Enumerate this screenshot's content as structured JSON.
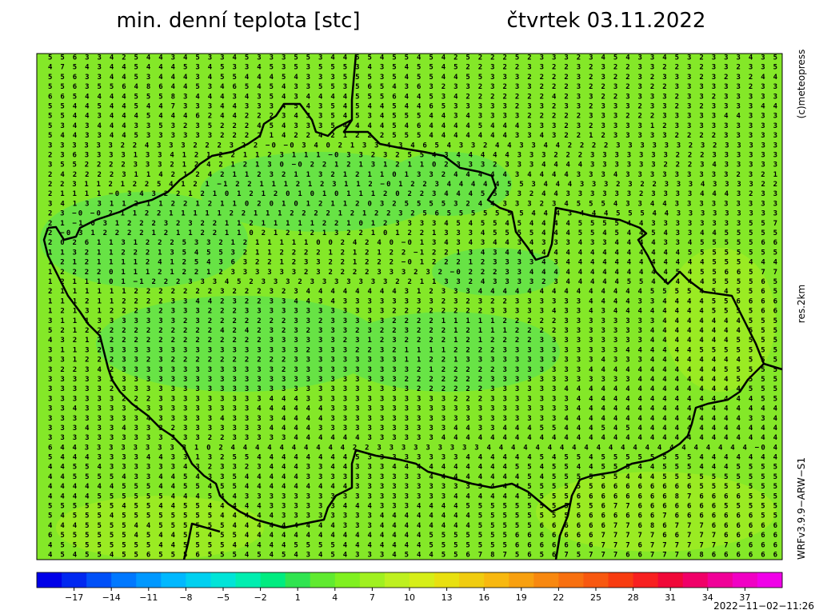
{
  "header": {
    "title": "min. denní teplota [stc]",
    "date": "čtvrtek 03.11.2022"
  },
  "side_labels": {
    "copyright": "(c)meteopress",
    "resolution": "res.2km",
    "model": "WRFv3.9.9−ARW−S1"
  },
  "map": {
    "rows": [
      "5 5 6 3 3 4 2 5 4 4 3 4 5 3 3 4 5 3 3 3 5 5 3 4 4 5 5 4 5 5 4 5 4 2 5 2 2 2 5 2 3 3 3 2 3 4 5 4 3 3 4 5 3 2 3 3 3 4 3 5",
      "4 7 5 4 3 4 4 5 4 4 4 5 3 4 5 3 3 4 5 3 5 3 5 5 5 3 4 3 5 4 5 5 4 5 2 2 3 2 2 3 3 2 2 3 2 3 2 2 3 3 2 2 3 2 3 3 2 3 3 5",
      "5 5 6 3 3 4 4 5 3 4 4 4 3 4 5 5 4 4 4 5 4 3 3 3 5 5 5 3 5 4 5 5 4 4 5 5 3 3 3 2 2 2 2 3 2 3 2 2 3 2 3 3 3 2 3 2 3 2 4 4",
      "5 5 6 3 5 5 6 4 8 6 4 4 5 3 4 6 5 4 5 4 3 3 5 5 3 5 6 5 4 3 6 3 2 3 3 2 3 2 3 3 2 2 2 3 2 2 3 2 3 2 2 3 3 3 3 3 3 2 3 3",
      "6 6 5 4 4 4 4 5 5 5 8 3 4 4 4 3 4 3 5 4 3 4 4 4 4 5 5 5 6 4 4 5 3 4 2 2 2 2 2 2 2 4 2 3 3 2 2 3 3 3 3 2 3 3 2 3 3 3 3 3",
      "5 5 4 4 5 4 4 5 4 4 7 3 3 3 4 4 3 3 3 4 5 4 3 5 4 5 4 4 5 4 4 6 5 3 3 3 3 3 2 3 3 2 3 3 2 3 3 3 2 3 3 2 3 2 3 3 3 3 4 4",
      "5 5 4 4 3 4 4 4 5 4 4 4 6 2 4 4 2 2 2 3 4 3 3 5 4 5 3 4 5 5 5 4 4 3 4 3 3 3 3 2 2 2 2 2 3 3 3 2 2 2 3 3 3 3 3 4 4 3 3 3",
      "5 3 4 3 4 4 4 3 3 5 3 2 3 5 2 2 2 4 5 4 3 3 3 5 4 4 4 4 5 4 6 4 4 4 4 5 4 4 4 3 3 3 2 3 2 3 3 3 3 1 2 3 3 3 3 3 3 3 3 3",
      "5 4 4 3 3 4 4 5 3 3 3 3 3 3 2 2 2 2 1 4 2 2 4 2 1 2 2 2 5 5 5 4 4 4 4 4 4 4 3 3 4 3 2 2 1 2 3 3 3 3 3 2 2 2 2 3 3 3 3 3",
      "3 3 3 3 3 3 2 2 4 3 3 3 2 2 2 3 2 2 −0 −0 3 4 0 2 1 3 3 4 3 4 6 5 4 3 3 2 4 4 3 3 4 4 2 2 2 2 3 3 3 3 3 3 2 3 2 3 3 3 3 3",
      "2 3 6 3 3 3 3 1 3 3 4 1 2 1 2 2 1 1 2 3 1 1 1 −0 3 3 2 3 2 5 5 4 3 4 4 4 4 4 3 3 3 2 2 2 3 3 3 3 3 3 3 2 2 2 3 3 3 3 3 3",
      "3 5 5 2 2 2 2 3 3 3 2 1 2 4 2 1 2 1 3 0 −0 2 2 1 2 1 3 1 2 1 1 0 2 3 3 3 2 3 3 3 4 4 4 4 3 3 3 3 3 3 2 2 2 3 4 3 3 3 3 3",
      "2 4 2 2 2 2 3 1 1 4 2 1 2 4 2 1 1 2 3 2 1 1 3 2 1 2 1 1 0 1 3 3 2 4 4 4 4 4 3 4 4 4 4 3 3 3 4 3 3 3 3 3 3 3 3 3 2 3 2 1",
      "2 2 3 1 1 2 1 2 2 5 4 1 2 1 −1 2 2 1 1 1 2 1 2 3 1 1 2 −0 1 2 2 3 4 4 4 4 4 5 5 3 4 4 4 3 3 3 2 3 2 2 3 3 3 4 3 3 3 3 2 2",
      "2 1 1 1 1 −0 3 4 3 2 2 1 2 1 0 1 2 1 2 0 1 0 1 0 1 1 1 2 0 2 2 3 4 4 4 5 5 3 3 2 4 4 3 3 3 3 3 3 2 3 3 3 3 4 4 4 3 2 3 3",
      "3 4 1 3 3 1 1 2 1 1 2 2 1 2 1 1 0 2 0 1 0 1 2 1 1 2 0 3 2 5 5 5 5 3 2 4 4 3 3 3 2 3 4 5 5 5 4 3 3 4 4 3 3 3 3 3 3 3 3 3",
      "2 3 −0 −0 2 1 1 2 2 1 1 1 1 1 2 2 1 1 1 2 2 2 2 1 2 1 2 2 3 2 5 6 5 5 5 5 5 5 5 4 4 4 3 4 4 4 5 5 5 4 4 3 3 3 3 3 3 3 3 3",
      "2 1 −1 0 3 1 2 2 2 3 2 3 2 2 1 1 2 1 1 1 1 1 2 2 1 0 1 2 3 3 3 3 4 5 4 5 5 4 5 4 4 4 4 5 5 5 5 4 4 3 3 3 3 3 3 3 3 5 5 7",
      "2 −0 3 1 2 2 2 2 1 2 1 1 2 2 1 1 0 2 1 2 1 2 1 3 2 2 1 0 1 2 2 1 3 3 3 4 5 5 5 5 4 4 4 5 5 4 5 4 4 5 4 3 3 4 4 5 5 5 5 5",
      "2 0 2 6 1 1 3 1 2 2 2 5 3 3 2 1 2 1 1 1 1 1 0 0 2 4 2 4 0 −0 1 3 4 3 4 3 4 4 3 4 3 3 3 4 3 3 4 4 4 4 3 3 4 5 5 5 5 5 6 6",
      "1 1 3 2 1 1 2 2 2 1 3 5 4 5 5 3 2 1 1 2 2 2 2 1 2 1 2 1 2 2 −1 2 2 1 3 4 3 4 4 4 4 4 4 4 4 4 4 4 4 4 4 4 5 5 5 5 5 5 5 5",
      "1 2 1 2 1 1 1 1 2 4 1 2 5 4 3 6 3 2 2 1 2 3 3 2 2 1 2 2 2 −0 1 2 2 2 1 2 3 3 3 3 4 3 4 4 4 4 4 4 4 4 4 4 4 4 5 5 5 4 4 4",
      "1 2 2 2 2 0 1 1 1 2 1 2 2 1 2 3 3 3 3 3 3 2 3 2 2 2 2 3 3 3 2 3 2 −0 2 2 2 3 3 4 4 4 4 4 4 4 4 4 4 4 4 5 4 5 5 6 6 5 7 7",
      "1 2 1 1 1 0 1 −1 2 2 2 3 3 3 4 5 2 3 3 3 2 3 3 3 3 3 3 3 2 2 1 1 3 3 2 4 3 3 3 3 2 3 4 4 4 4 4 5 5 4 4 4 4 4 5 5 5 5 6 5",
      "2 1 1 1 1 1 1 2 2 2 2 2 2 2 3 2 2 2 3 2 3 4 4 4 4 4 4 4 4 3 1 2 3 3 3 4 4 4 4 4 4 4 4 4 4 4 4 4 4 5 5 5 5 4 5 4 5 5 6 5",
      "1 1 1 2 1 1 2 2 2 2 3 3 4 4 2 3 2 2 3 3 4 4 3 4 3 3 3 3 3 3 3 3 2 3 2 3 2 2 3 3 3 3 3 3 4 4 4 4 3 3 4 4 4 4 5 5 6 6 6 6",
      "1 2 1 3 1 2 2 2 3 2 3 3 3 2 2 2 3 3 3 3 3 3 3 3 3 3 3 3 2 2 2 2 2 2 2 2 3 3 3 3 3 4 3 3 4 3 4 4 4 4 4 4 4 4 5 5 5 5 6 6",
      "3 1 1 1 3 3 3 3 3 3 3 2 3 2 2 2 2 2 2 2 3 3 2 3 3 3 3 3 2 2 2 2 1 1 1 1 1 2 2 2 2 2 3 3 3 3 3 3 3 3 4 4 4 4 4 4 4 5 5 5",
      "5 2 1 2 2 2 2 2 2 2 2 2 2 2 4 2 4 2 3 2 3 2 3 3 3 2 3 2 2 3 2 2 2 1 2 1 1 1 2 2 2 2 3 3 3 3 3 3 3 4 4 4 4 4 4 4 4 5 5 5",
      "4 3 2 1 2 2 2 2 2 2 2 2 2 2 2 2 2 2 3 3 3 3 3 3 2 3 1 2 3 2 2 2 2 1 2 1 2 2 2 2 3 3 3 3 3 3 3 3 3 4 4 4 4 4 4 4 5 5 5 5",
      "3 1 1 3 2 3 3 3 3 3 3 3 3 3 3 3 3 3 3 3 3 2 3 3 3 2 2 3 2 1 1 1 1 2 2 2 2 3 3 3 3 3 3 3 3 3 3 4 4 4 4 4 4 5 5 5 5 5 5 5",
      "3 3 1 2 2 2 3 3 2 3 2 2 2 2 2 2 2 2 2 2 3 3 3 3 3 3 3 3 3 1 1 2 2 1 3 3 3 3 3 3 3 3 3 3 3 4 3 3 3 4 4 4 4 4 4 4 4 5 5 5",
      "3 2 2 3 4 2 3 3 3 3 3 3 3 3 3 3 3 3 3 2 3 3 3 3 3 3 3 3 3 3 2 1 2 2 2 2 2 3 3 3 3 3 3 3 4 4 4 4 4 4 4 4 4 4 4 5 5 5 5 5",
      "3 3 3 3 3 3 3 3 3 3 3 3 3 3 3 3 3 3 3 3 3 3 3 3 3 3 3 3 3 2 2 2 2 2 2 2 3 3 3 3 3 3 3 3 3 3 3 3 4 4 4 4 4 4 4 4 5 5 5 5",
      "3 3 3 3 3 2 3 3 3 3 3 3 3 3 3 3 3 3 3 3 3 3 3 3 3 3 3 3 3 3 2 2 2 2 2 2 3 3 3 3 3 3 4 4 4 4 4 4 4 4 4 4 4 4 4 4 4 5 5 5",
      "3 3 3 3 3 3 2 2 2 3 3 3 3 3 3 3 3 3 4 4 4 3 3 3 3 3 3 3 3 3 3 3 3 2 2 2 3 3 3 3 3 3 3 4 4 4 4 4 4 4 4 4 4 4 4 4 4 4 5 5",
      "3 3 4 3 3 3 3 3 3 3 3 3 3 3 3 3 3 4 4 4 4 4 4 3 3 3 3 3 3 3 3 3 3 3 3 3 3 3 3 3 3 3 3 4 4 4 4 4 4 4 4 4 4 4 4 4 4 4 4 4",
      "3 3 3 3 3 3 3 3 4 3 3 3 3 3 4 3 3 3 3 4 4 4 4 3 3 3 3 3 3 3 3 3 3 3 3 3 3 3 3 3 3 3 4 4 4 4 4 4 4 4 4 4 4 4 4 4 4 3 3 4",
      "3 3 3 4 3 3 4 3 3 3 2 3 3 3 3 3 3 3 4 4 4 4 3 3 3 3 3 3 3 3 3 3 3 4 4 3 3 4 4 4 5 5 4 4 4 5 4 5 4 4 4 4 4 4 4 4 4 4 4 4",
      "3 3 3 3 3 3 3 3 3 3 3 3 3 2 2 3 3 3 3 3 4 4 4 4 4 4 3 3 3 3 3 3 4 4 4 4 4 4 4 4 4 4 4 4 4 4 4 4 4 4 4 4 4 4 4 4 4 4 4 4",
      "6 4 4 3 3 3 3 3 3 3 3 3 1 0 2 4 4 4 4 4 4 4 4 4 4 2 2 3 3 3 3 3 3 3 3 3 4 4 4 4 4 4 4 4 4 4 4 4 4 4 4 4 4 4 4 4 4 4 −0 4",
      "5 4 4 4 3 3 3 3 4 4 3 3 1 3 2 5 5 4 4 4 4 4 4 4 4 5 3 3 3 3 3 3 3 3 4 4 4 4 4 4 5 4 5 5 4 5 5 5 5 5 5 5 5 4 4 4 4 4 4 4",
      "4 4 5 5 4 3 3 3 3 3 3 4 3 2 3 3 2 3 4 4 4 3 3 4 4 3 3 3 4 4 4 4 4 4 4 4 4 4 5 5 4 5 5 4 4 5 5 5 4 4 5 5 5 4 4 4 5 5 5 5",
      "4 4 5 5 5 5 4 3 3 4 4 5 4 3 3 5 4 4 4 4 4 3 3 3 3 3 3 3 3 3 3 4 4 4 4 4 4 4 4 5 4 5 5 5 5 5 5 4 4 4 5 5 5 5 5 5 5 5 5 5",
      "4 4 4 4 4 4 5 5 5 4 4 5 5 4 5 5 4 4 4 4 4 4 4 4 4 3 3 3 3 3 3 3 3 3 3 3 4 4 4 5 5 5 5 5 5 6 6 6 6 6 6 6 6 5 5 5 5 5 5 5",
      "4 4 4 4 5 5 5 5 5 5 4 4 4 5 4 4 3 3 3 3 3 3 3 3 3 3 3 3 3 3 3 3 3 4 4 4 4 4 4 5 5 5 5 6 6 6 6 6 6 6 6 8 7 6 6 6 6 5 5 5",
      "5 5 5 5 5 5 4 5 5 4 4 5 5 4 4 4 4 4 3 3 3 3 3 3 4 4 4 3 3 3 4 4 4 4 5 5 5 5 5 5 5 5 5 5 5 6 7 7 6 6 6 6 6 6 6 5 5 5 5 5",
      "5 4 5 5 5 4 5 5 5 5 5 5 5 5 4 4 4 4 4 3 3 3 3 3 3 3 3 4 4 4 4 4 4 4 4 5 5 5 5 5 5 5 5 6 6 6 6 6 6 6 7 6 6 6 6 6 6 6 5 5",
      "4 4 4 5 5 5 5 4 4 5 5 5 5 5 5 4 4 4 4 4 4 4 4 4 3 3 3 4 4 4 4 4 4 4 4 5 5 5 5 5 6 6 6 6 6 6 7 7 6 8 6 7 7 7 6 6 6 6 6 6",
      "6 5 5 5 5 5 5 4 5 4 4 5 5 4 5 5 4 4 4 4 4 4 4 4 4 4 4 4 4 4 4 5 5 5 5 5 5 5 6 6 6 6 6 6 6 7 7 7 7 7 6 6 7 7 7 6 6 6 6 6",
      "4 5 5 5 5 5 5 5 5 4 4 5 5 5 5 4 4 4 4 4 5 5 5 5 4 4 4 4 4 4 4 5 5 5 5 5 5 5 6 6 6 6 6 6 6 7 7 7 6 7 7 7 7 7 7 7 6 6 6 6",
      "4 5 4 5 5 4 5 5 6 5 5 5 6 5 5 5 4 5 4 5 4 3 4 5 4 3 3 3 4 5 4 4 5 5 6 7 8 7 5 6 5 6 7 5 7 7 7 6 6 7 7 7 6 8 6 6 6 6 6 6"
    ]
  },
  "colorbar": {
    "range": [
      -20,
      40
    ],
    "colors": [
      "#0000e8",
      "#0028f0",
      "#0050f8",
      "#0078ff",
      "#0098ff",
      "#00b8ff",
      "#00d0f0",
      "#00e4d8",
      "#00eeb0",
      "#00ec80",
      "#30e450",
      "#60ea30",
      "#80f020",
      "#a0f020",
      "#bef020",
      "#d6ee18",
      "#e8e010",
      "#f0cc10",
      "#f8b810",
      "#f8a010",
      "#f88810",
      "#f87010",
      "#f85810",
      "#f83c10",
      "#f82020",
      "#f00838",
      "#f00068",
      "#f00098",
      "#f000c4",
      "#f000e8"
    ],
    "ticks": [
      {
        "value": -17,
        "label": "−17"
      },
      {
        "value": -14,
        "label": "−14"
      },
      {
        "value": -11,
        "label": "−11"
      },
      {
        "value": -8,
        "label": "−8"
      },
      {
        "value": -5,
        "label": "−5"
      },
      {
        "value": -2,
        "label": "−2"
      },
      1,
      4,
      7,
      10,
      13,
      16,
      19,
      22,
      25,
      28,
      31,
      34,
      37
    ]
  },
  "timestamp": "2022−11−02−11:26"
}
